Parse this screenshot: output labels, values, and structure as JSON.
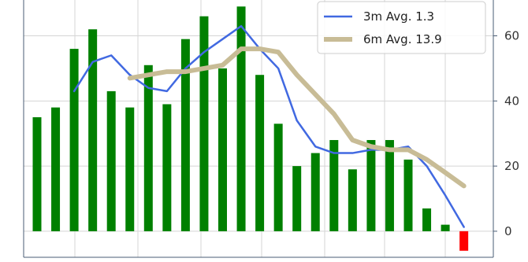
{
  "chart_data": {
    "type": "bar",
    "title": "",
    "xlabel": "",
    "ylabel": "",
    "ylim": [
      -8,
      71
    ],
    "yticks": [
      0,
      20,
      40,
      60
    ],
    "y_axis_side": "right",
    "grid": true,
    "legend_position": "top-right",
    "bar_values": [
      35,
      38,
      56,
      62,
      43,
      38,
      51,
      39,
      59,
      66,
      50,
      69,
      48,
      33,
      20,
      24,
      28,
      19,
      28,
      28,
      22,
      7,
      2,
      -6
    ],
    "bar_positive_color": "#008000",
    "bar_negative_color": "#ff0000",
    "series": [
      {
        "name": "3m Avg. 1.3",
        "color": "#4169e1",
        "values": [
          null,
          null,
          43,
          52,
          54,
          48,
          44,
          43,
          50,
          55,
          59,
          63,
          56,
          50,
          34,
          26,
          24,
          24,
          25,
          25,
          26,
          20,
          11,
          1.3
        ]
      },
      {
        "name": "6m Avg. 13.9",
        "color": "#c8bc96",
        "values": [
          null,
          null,
          null,
          null,
          null,
          47,
          48,
          49,
          49,
          50,
          51,
          56,
          56,
          55,
          48,
          42,
          36,
          28,
          26,
          25,
          25,
          22,
          18,
          13.9
        ]
      }
    ]
  }
}
